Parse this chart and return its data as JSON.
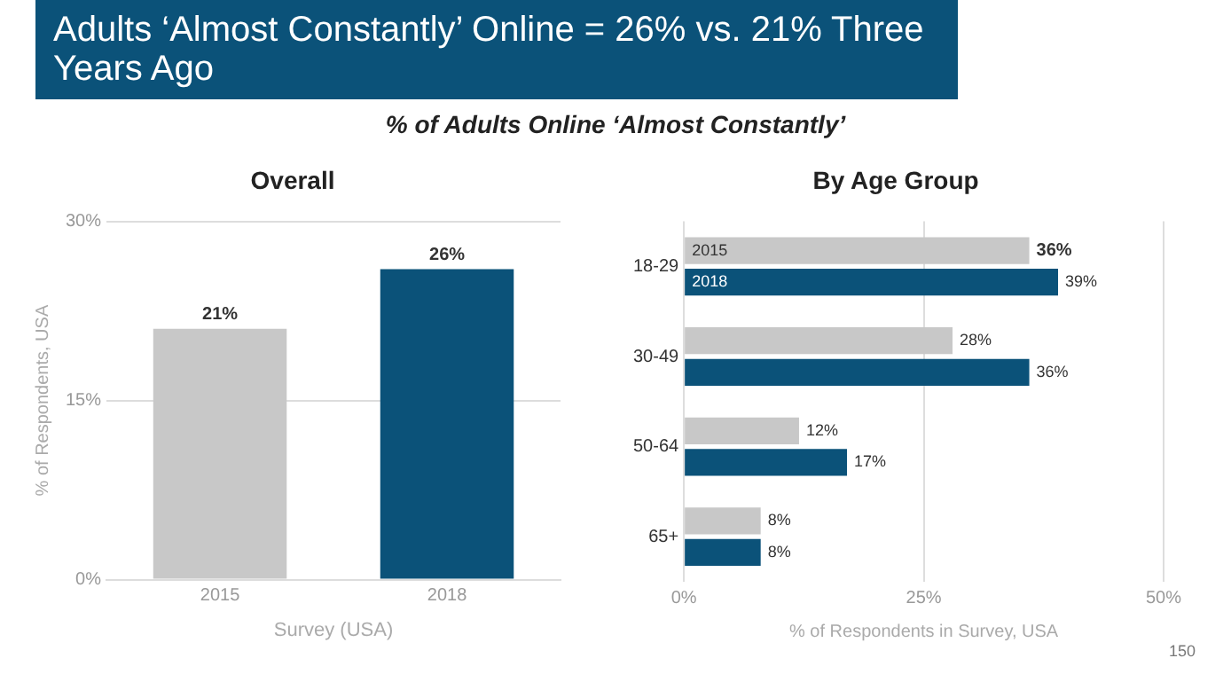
{
  "chart_data": [
    {
      "type": "other",
      "title": "Adults ‘Almost Constantly’ Online = 26% vs. 21% Three Years Ago",
      "subtitle": "% of Adults Online ‘Almost Constantly’",
      "annotations": [
        "150"
      ]
    },
    {
      "type": "bar",
      "title": "Overall",
      "categories": [
        "2015",
        "2018"
      ],
      "values": [
        21,
        26
      ],
      "colors": [
        "#c8c8c8",
        "#0b5279"
      ],
      "value_labels": [
        "21%",
        "26%"
      ],
      "ylim": [
        0,
        30
      ],
      "yticks": [
        {
          "value": 0,
          "label": "0%"
        },
        {
          "value": 15,
          "label": "15%"
        },
        {
          "value": 30,
          "label": "30%"
        }
      ],
      "ylabel": "% of Respondents, USA",
      "xlabel": "Survey (USA)",
      "grid": "y",
      "legend": false
    },
    {
      "type": "bar",
      "orientation": "horizontal",
      "title": "By Age Group",
      "categories": [
        "18-29",
        "30-49",
        "50-64",
        "65+"
      ],
      "series": [
        {
          "name": "2015",
          "color": "#c8c8c8",
          "values": [
            36,
            28,
            12,
            8
          ],
          "value_labels": [
            "36%",
            "28%",
            "12%",
            "8%"
          ]
        },
        {
          "name": "2018",
          "color": "#0b5279",
          "values": [
            39,
            36,
            17,
            8
          ],
          "value_labels": [
            "39%",
            "36%",
            "17%",
            "8%"
          ]
        }
      ],
      "xlim": [
        0,
        50
      ],
      "xticks": [
        {
          "value": 0,
          "label": "0%"
        },
        {
          "value": 25,
          "label": "25%"
        },
        {
          "value": 50,
          "label": "50%"
        }
      ],
      "xlabel": "% of Respondents in Survey, USA",
      "grid": "x",
      "legend": false
    }
  ]
}
